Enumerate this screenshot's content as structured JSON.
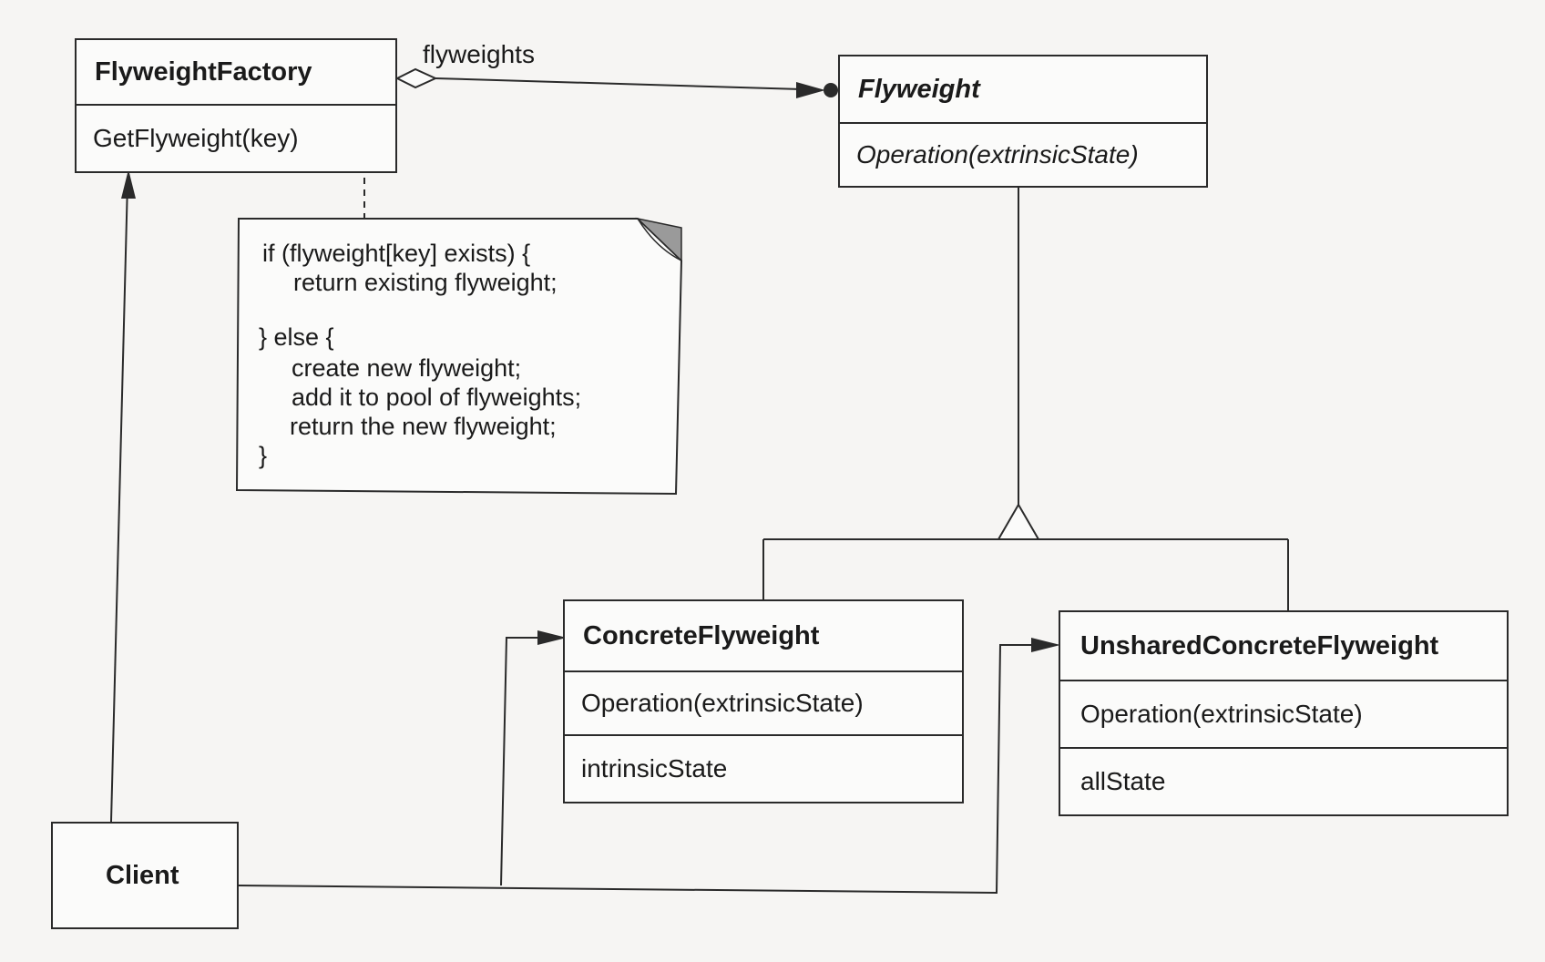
{
  "factory": {
    "name": "FlyweightFactory",
    "operation": "GetFlyweight(key)"
  },
  "flyweight": {
    "name": "Flyweight",
    "operation": "Operation(extrinsicState)"
  },
  "concrete": {
    "name": "ConcreteFlyweight",
    "operation": "Operation(extrinsicState)",
    "state": "intrinsicState"
  },
  "unshared": {
    "name": "UnsharedConcreteFlyweight",
    "operation": "Operation(extrinsicState)",
    "state": "allState"
  },
  "client": {
    "name": "Client"
  },
  "association_label": "flyweights",
  "note": {
    "lines": [
      "if (flyweight[key] exists) {",
      "return existing flyweight;",
      "} else {",
      "create new flyweight;",
      "add it to pool of flyweights;",
      "return the new flyweight;",
      "}"
    ]
  }
}
